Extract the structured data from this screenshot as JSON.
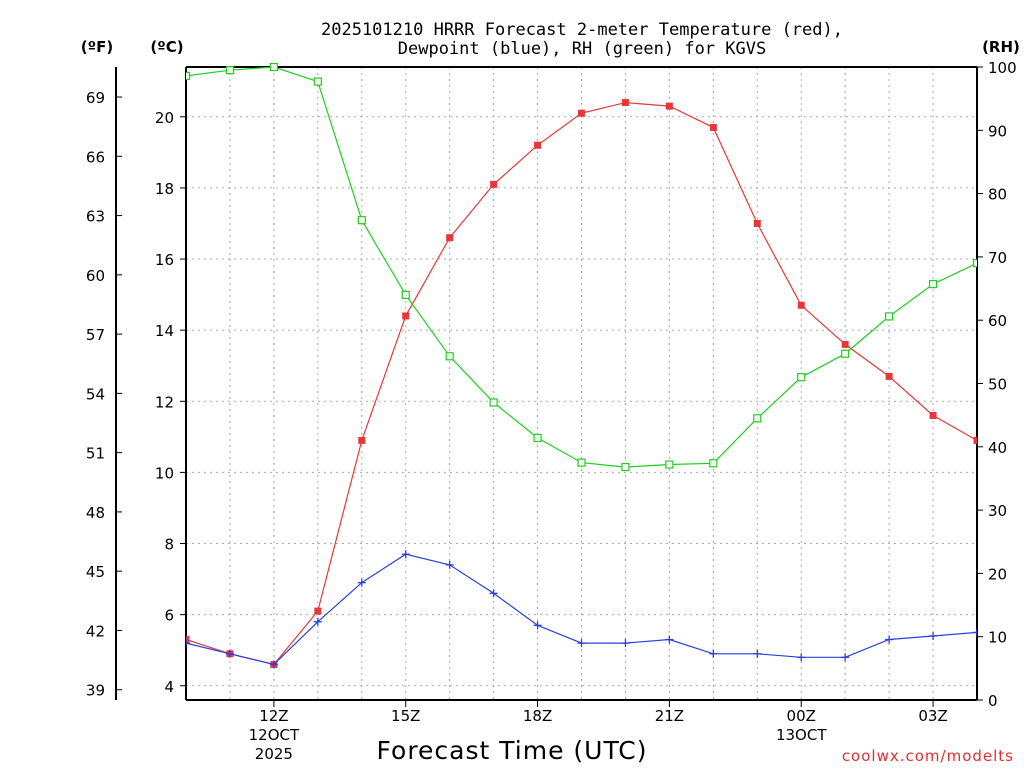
{
  "chart_data": {
    "type": "line",
    "title_lines": [
      "2025101210 HRRR Forecast 2-meter Temperature (red),",
      "Dewpoint (blue), RH (green) for KGVS"
    ],
    "units": {
      "left_outer": "(ºF)",
      "left_inner": "(ºC)",
      "right": "(RH)"
    },
    "xlabel": "Forecast Time (UTC)",
    "credit": "coolwx.com/modelts",
    "credit_color": "#e03030",
    "x_hours": [
      10,
      11,
      12,
      13,
      14,
      15,
      16,
      17,
      18,
      19,
      20,
      21,
      22,
      23,
      24,
      25,
      26,
      27,
      28
    ],
    "xlim": [
      10,
      28
    ],
    "x_ticks": [
      {
        "hour": 12,
        "lines": [
          "12Z",
          "12OCT",
          "2025"
        ]
      },
      {
        "hour": 15,
        "lines": [
          "15Z"
        ]
      },
      {
        "hour": 18,
        "lines": [
          "18Z"
        ]
      },
      {
        "hour": 21,
        "lines": [
          "21Z"
        ]
      },
      {
        "hour": 24,
        "lines": [
          "00Z",
          "13OCT"
        ]
      },
      {
        "hour": 27,
        "lines": [
          "03Z"
        ]
      }
    ],
    "ylim_c": [
      3.6,
      21.4
    ],
    "y_ticks_c": [
      4,
      6,
      8,
      10,
      12,
      14,
      16,
      18,
      20
    ],
    "y_ticks_f": [
      39,
      42,
      45,
      48,
      51,
      54,
      57,
      60,
      63,
      66,
      69
    ],
    "ylim_rh": [
      0,
      100
    ],
    "y_ticks_rh": [
      0,
      10,
      20,
      30,
      40,
      50,
      60,
      70,
      80,
      90,
      100
    ],
    "series": [
      {
        "name": "Temperature",
        "unit": "C",
        "color": "#e8373a",
        "marker": "filled-square",
        "values": [
          5.3,
          4.9,
          4.6,
          6.1,
          10.9,
          14.4,
          16.6,
          18.1,
          19.2,
          20.1,
          20.4,
          20.3,
          19.7,
          17.0,
          14.7,
          13.6,
          12.7,
          11.6,
          10.9
        ]
      },
      {
        "name": "Dewpoint",
        "unit": "C",
        "color": "#2b3fe0",
        "marker": "plus",
        "values": [
          5.2,
          4.9,
          4.6,
          5.8,
          6.9,
          7.7,
          7.4,
          6.6,
          5.7,
          5.2,
          5.2,
          5.3,
          4.9,
          4.9,
          4.8,
          4.8,
          5.3,
          5.4,
          5.5
        ]
      },
      {
        "name": "RH",
        "unit": "%",
        "color": "#1ecf1e",
        "marker": "open-square",
        "values": [
          98.6,
          99.5,
          100,
          97.7,
          75.8,
          64.0,
          54.3,
          47.0,
          41.4,
          37.5,
          36.8,
          37.2,
          37.4,
          44.5,
          51.0,
          54.7,
          60.6,
          65.7,
          69.0
        ]
      }
    ]
  }
}
